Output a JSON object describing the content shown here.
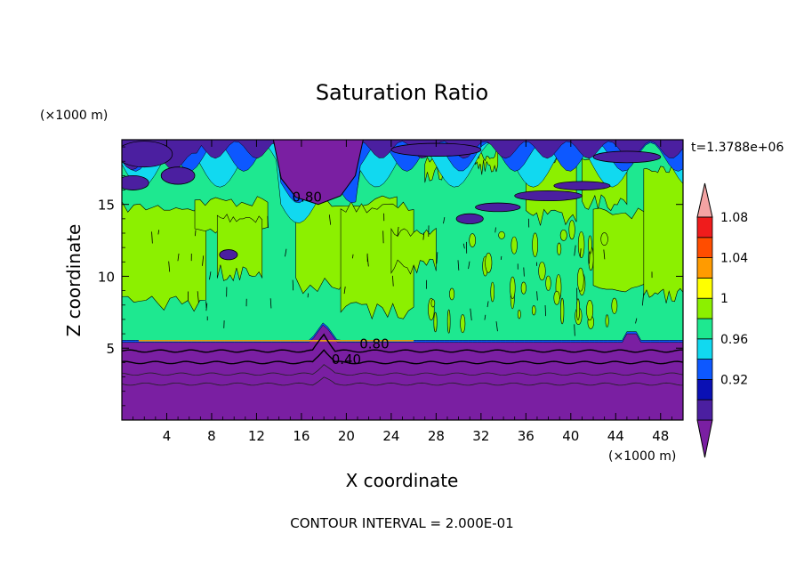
{
  "chart_data": {
    "type": "heatmap",
    "title": "Saturation Ratio",
    "time_label": "t=1.3788e+06",
    "xlabel": "X coordinate",
    "ylabel": "Z coordinate",
    "x_unit": "(×1000 m)",
    "y_unit": "(×1000 m)",
    "footer": "CONTOUR INTERVAL = 2.000E-01",
    "xlim": [
      0,
      50
    ],
    "ylim": [
      0,
      19.5
    ],
    "x_ticks": [
      4,
      8,
      12,
      16,
      20,
      24,
      28,
      32,
      36,
      40,
      44,
      48
    ],
    "y_ticks": [
      5,
      10,
      15
    ],
    "colorbar": {
      "levels": [
        0.92,
        0.96,
        1,
        1.04,
        1.08
      ],
      "level_labels": [
        "0.92",
        "0.96",
        "1",
        "1.04",
        "1.08"
      ],
      "colors": [
        "#7a1fa2",
        "#4b1fa0",
        "#0a10b4",
        "#0d58ff",
        "#11d9f0",
        "#1ee890",
        "#8cf000",
        "#ffff00",
        "#ff9b00",
        "#ff4d00",
        "#ef1c1c",
        "#f4a3a3"
      ]
    },
    "contour_labels": [
      {
        "text": "0.80",
        "x": 22.5,
        "y": 5.3
      },
      {
        "text": "0.40",
        "x": 20.0,
        "y": 4.2
      },
      {
        "text": "0.80",
        "x": 16.5,
        "y": 15.5
      }
    ],
    "regions": {
      "lower_boundary_z": 5.4,
      "upper_dry_layer_z": 15.4
    }
  }
}
